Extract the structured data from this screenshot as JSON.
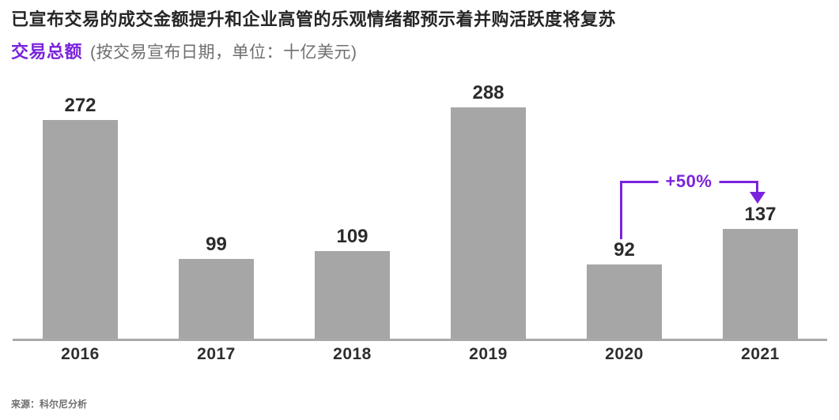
{
  "header": {
    "title": "已宣布交易的成交金额提升和企业高管的乐观情绪都预示着并购活跃度将复苏",
    "chart_label": "交易总额",
    "chart_sublabel": "(按交易宣布日期，单位：十亿美元)"
  },
  "chart_data": {
    "type": "bar",
    "categories": [
      "2016",
      "2017",
      "2018",
      "2019",
      "2020",
      "2021"
    ],
    "values": [
      272,
      99,
      109,
      288,
      92,
      137
    ],
    "title": "交易总额",
    "subtitle": "按交易宣布日期，单位：十亿美元",
    "xlabel": "",
    "ylabel": "",
    "ylim": [
      0,
      300
    ],
    "grid": false,
    "legend": "none",
    "bar_color": "#a6a6a6",
    "annotation": {
      "label": "+50%",
      "from_category": "2020",
      "to_category": "2021",
      "meaning": "value grew 50% from 92 in 2020 to 137 in 2021"
    }
  },
  "footer": {
    "source": "来源：科尔尼分析"
  },
  "colors": {
    "accent_purple": "#7a23dc",
    "bar_gray": "#a6a6a6",
    "axis_gray": "#a9a9a9",
    "title_dark": "#262626",
    "subtitle_gray": "#6e6e6e",
    "value_label_dark": "#2b2b2b",
    "tick_label_dark": "#2e2e2e",
    "background": "#ffffff"
  }
}
